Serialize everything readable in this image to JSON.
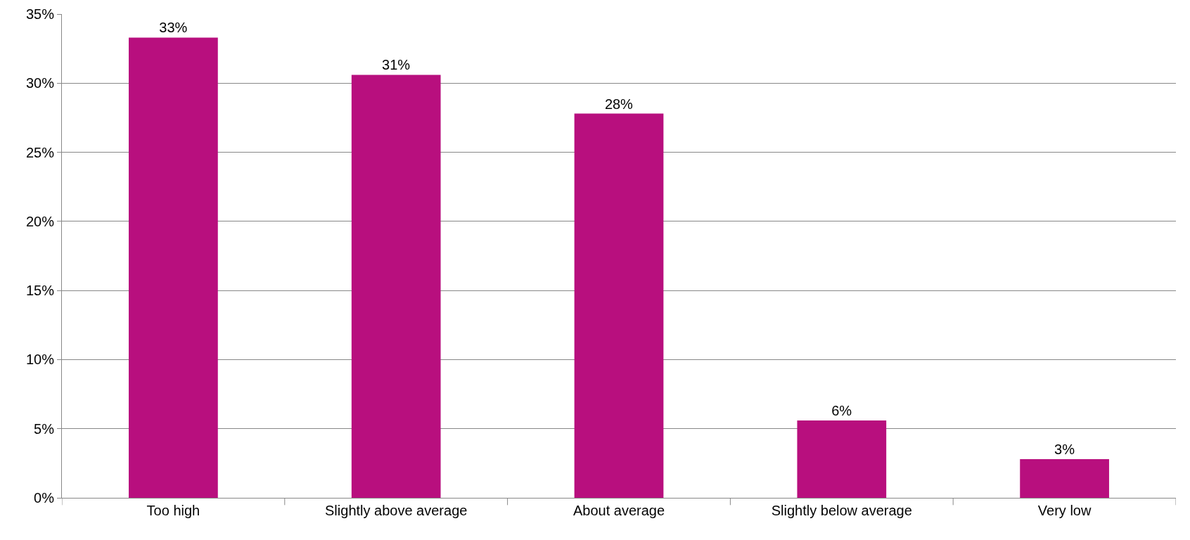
{
  "chart_data": {
    "type": "bar",
    "categories": [
      "Too high",
      "Slightly above average",
      "About average",
      "Slightly below average",
      "Very low"
    ],
    "values": [
      33.3,
      30.6,
      27.8,
      5.6,
      2.8
    ],
    "value_labels": [
      "33%",
      "31%",
      "28%",
      "6%",
      "3%"
    ],
    "color": "#b80f7e",
    "ylim": [
      0,
      35
    ],
    "yticks": [
      {
        "value": 0,
        "label": "0%"
      },
      {
        "value": 5,
        "label": "5%"
      },
      {
        "value": 10,
        "label": "10%"
      },
      {
        "value": 15,
        "label": "15%"
      },
      {
        "value": 20,
        "label": "20%"
      },
      {
        "value": 25,
        "label": "25%"
      },
      {
        "value": 30,
        "label": "30%"
      },
      {
        "value": 35,
        "label": "35%"
      }
    ],
    "grid": "y"
  }
}
